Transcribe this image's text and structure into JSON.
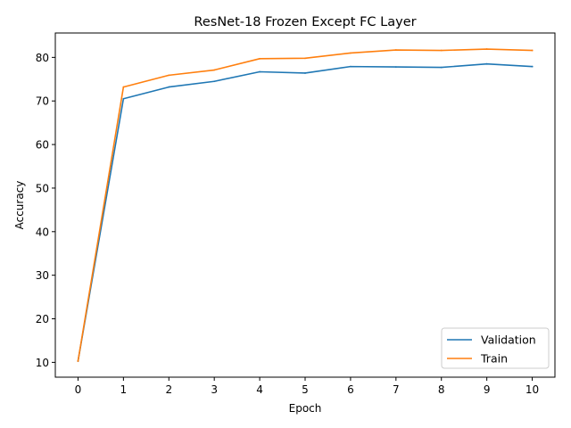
{
  "chart_data": {
    "type": "line",
    "title": "ResNet-18 Frozen Except FC Layer",
    "xlabel": "Epoch",
    "ylabel": "Accuracy",
    "x": [
      0,
      1,
      2,
      3,
      4,
      5,
      6,
      7,
      8,
      9,
      10
    ],
    "xticks": [
      "0",
      "1",
      "2",
      "3",
      "4",
      "5",
      "6",
      "7",
      "8",
      "9",
      "10"
    ],
    "yticks": [
      "10",
      "20",
      "30",
      "40",
      "50",
      "60",
      "70",
      "80"
    ],
    "ytick_values": [
      10,
      20,
      30,
      40,
      50,
      60,
      70,
      80
    ],
    "xlim": [
      -0.5,
      10.5
    ],
    "ylim": [
      6.6,
      85.6
    ],
    "grid": false,
    "legend_position": "lower-right",
    "series": [
      {
        "name": "Validation",
        "color": "#1f77b4",
        "values": [
          10.3,
          70.5,
          73.2,
          74.5,
          76.7,
          76.4,
          77.9,
          77.8,
          77.7,
          78.5,
          77.9
        ]
      },
      {
        "name": "Train",
        "color": "#ff7f0e",
        "values": [
          10.3,
          73.2,
          75.9,
          77.1,
          79.7,
          79.8,
          81.0,
          81.7,
          81.6,
          81.9,
          81.6
        ]
      }
    ]
  }
}
